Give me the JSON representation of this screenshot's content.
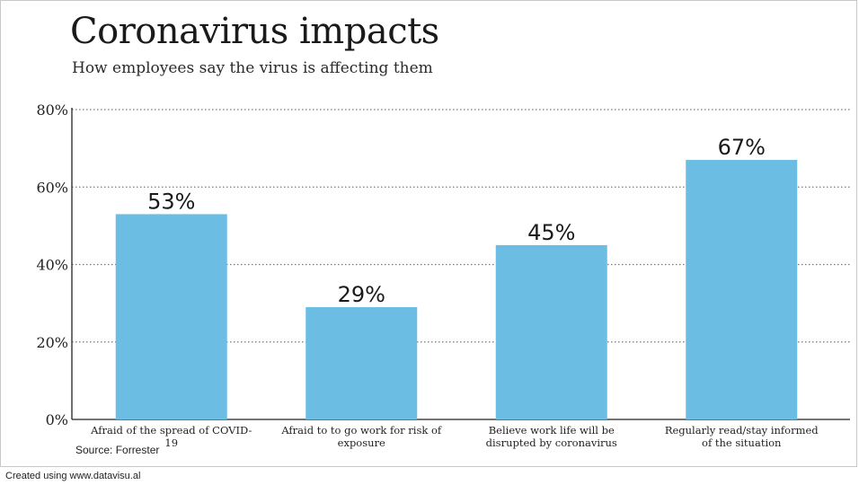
{
  "chart_data": {
    "type": "bar",
    "title": "Coronavirus impacts",
    "subtitle": "How employees say the virus is affecting them",
    "categories": [
      "Afraid of the spread of COVID-19",
      "Afraid to to go work for risk of exposure",
      "Believe work life will be disrupted by coronavirus",
      "Regularly read/stay informed of the situation"
    ],
    "category_lines": [
      [
        "Afraid of the spread of COVID-",
        "19"
      ],
      [
        "Afraid to to go work for risk of",
        "exposure"
      ],
      [
        "Believe work life will be",
        "disrupted by coronavirus"
      ],
      [
        "Regularly read/stay informed",
        "of the situation"
      ]
    ],
    "values": [
      53,
      29,
      45,
      67
    ],
    "data_labels": [
      "53%",
      "29%",
      "45%",
      "67%"
    ],
    "ylim": [
      0,
      80
    ],
    "yticks": [
      0,
      20,
      40,
      60,
      80
    ],
    "ytick_labels": [
      "0%",
      "20%",
      "40%",
      "60%",
      "80%"
    ],
    "xlabel": "",
    "ylabel": "",
    "grid": true,
    "grid_style": "dotted",
    "bar_color": "#6bbde3",
    "legend": "none"
  },
  "source": "Source: Forrester",
  "footer": "Created using www.datavisu.al"
}
